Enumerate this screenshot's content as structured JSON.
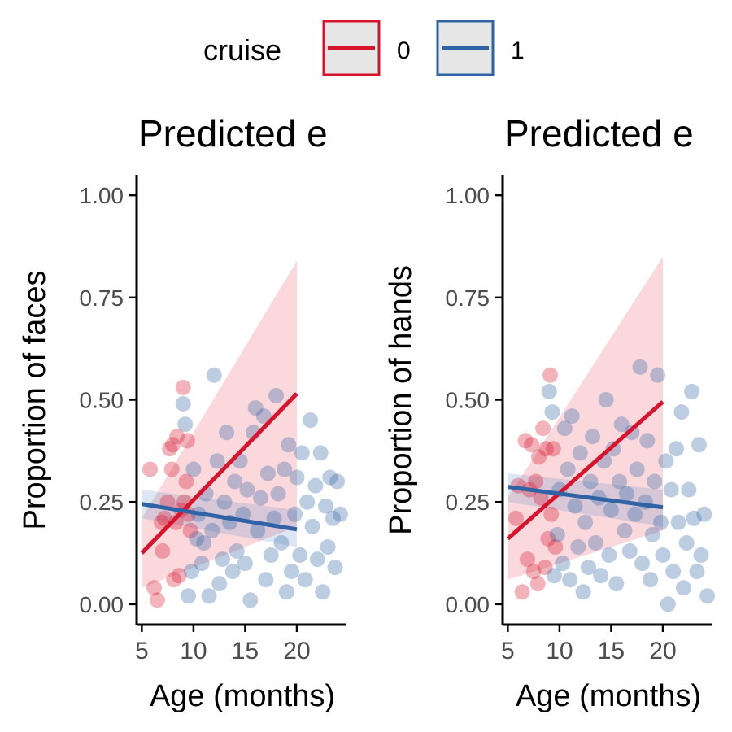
{
  "legend": {
    "title": "cruise",
    "items": [
      {
        "label": "0",
        "color": "#d7142b"
      },
      {
        "label": "1",
        "color": "#2f63a6"
      }
    ]
  },
  "chart_data": [
    {
      "type": "scatter",
      "title": "Predicted e",
      "xlabel": "Age (months)",
      "ylabel": "Proportion of faces",
      "xlim": [
        4.5,
        24.8
      ],
      "ylim": [
        -0.05,
        1.05
      ],
      "xticks": [
        5,
        10,
        15,
        20
      ],
      "yticks": [
        0.0,
        0.25,
        0.5,
        0.75,
        1.0
      ],
      "ytick_labels": [
        "0.00",
        "0.25",
        "0.50",
        "0.75",
        "1.00"
      ],
      "series": [
        {
          "name": "0",
          "color": "#d7142b",
          "points": [
            [
              5.8,
              0.33
            ],
            [
              6.2,
              0.04
            ],
            [
              6.5,
              0.01
            ],
            [
              6.9,
              0.2
            ],
            [
              7.0,
              0.13
            ],
            [
              7.2,
              0.21
            ],
            [
              7.5,
              0.25
            ],
            [
              7.7,
              0.38
            ],
            [
              7.9,
              0.33
            ],
            [
              8.0,
              0.39
            ],
            [
              8.1,
              0.06
            ],
            [
              8.3,
              0.2
            ],
            [
              8.4,
              0.41
            ],
            [
              8.6,
              0.07
            ],
            [
              8.8,
              0.23
            ],
            [
              9.0,
              0.53
            ],
            [
              9.1,
              0.25
            ],
            [
              9.3,
              0.3
            ],
            [
              9.4,
              0.4
            ],
            [
              9.5,
              0.22
            ],
            [
              9.7,
              0.18
            ]
          ],
          "fit": {
            "x": [
              5,
              20
            ],
            "y": [
              0.125,
              0.515
            ]
          },
          "band": {
            "lower": [
              0.04,
              0.19
            ],
            "upper": [
              0.21,
              0.84
            ]
          }
        },
        {
          "name": "1",
          "color": "#2f63a6",
          "points": [
            [
              9.0,
              0.49
            ],
            [
              9.2,
              0.44
            ],
            [
              9.5,
              0.02
            ],
            [
              9.8,
              0.08
            ],
            [
              10.0,
              0.33
            ],
            [
              10.3,
              0.16
            ],
            [
              10.5,
              0.22
            ],
            [
              10.8,
              0.1
            ],
            [
              11.0,
              0.15
            ],
            [
              11.2,
              0.27
            ],
            [
              11.5,
              0.02
            ],
            [
              11.8,
              0.18
            ],
            [
              12.0,
              0.56
            ],
            [
              12.3,
              0.35
            ],
            [
              12.5,
              0.05
            ],
            [
              12.8,
              0.11
            ],
            [
              13.0,
              0.25
            ],
            [
              13.2,
              0.42
            ],
            [
              13.5,
              0.2
            ],
            [
              13.8,
              0.08
            ],
            [
              14.0,
              0.3
            ],
            [
              14.2,
              0.13
            ],
            [
              14.5,
              0.35
            ],
            [
              14.8,
              0.22
            ],
            [
              15.0,
              0.1
            ],
            [
              15.2,
              0.28
            ],
            [
              15.5,
              0.01
            ],
            [
              15.8,
              0.42
            ],
            [
              16.0,
              0.48
            ],
            [
              16.2,
              0.18
            ],
            [
              16.5,
              0.26
            ],
            [
              16.8,
              0.46
            ],
            [
              17.0,
              0.06
            ],
            [
              17.2,
              0.32
            ],
            [
              17.5,
              0.12
            ],
            [
              17.8,
              0.21
            ],
            [
              18.0,
              0.51
            ],
            [
              18.2,
              0.27
            ],
            [
              18.5,
              0.15
            ],
            [
              18.8,
              0.33
            ],
            [
              19.0,
              0.03
            ],
            [
              19.2,
              0.39
            ],
            [
              19.5,
              0.08
            ],
            [
              19.8,
              0.22
            ],
            [
              20.0,
              0.31
            ],
            [
              20.3,
              0.12
            ],
            [
              20.5,
              0.37
            ],
            [
              20.8,
              0.06
            ],
            [
              21.0,
              0.25
            ],
            [
              21.3,
              0.45
            ],
            [
              21.5,
              0.19
            ],
            [
              21.8,
              0.29
            ],
            [
              22.0,
              0.11
            ],
            [
              22.3,
              0.37
            ],
            [
              22.5,
              0.03
            ],
            [
              22.8,
              0.24
            ],
            [
              23.0,
              0.14
            ],
            [
              23.2,
              0.31
            ],
            [
              23.5,
              0.21
            ],
            [
              23.7,
              0.09
            ],
            [
              23.9,
              0.3
            ],
            [
              24.2,
              0.22
            ]
          ],
          "fit": {
            "x": [
              5,
              20
            ],
            "y": [
              0.245,
              0.183
            ]
          },
          "band": {
            "lower": [
              0.21,
              0.14
            ],
            "upper": [
              0.28,
              0.23
            ]
          }
        }
      ]
    },
    {
      "type": "scatter",
      "title": "Predicted e",
      "xlabel": "Age (months)",
      "ylabel": "Proportion of hands",
      "xlim": [
        4.5,
        24.8
      ],
      "ylim": [
        -0.05,
        1.05
      ],
      "xticks": [
        5,
        10,
        15,
        20
      ],
      "yticks": [
        0.0,
        0.25,
        0.5,
        0.75,
        1.0
      ],
      "ytick_labels": [
        "0.00",
        "0.25",
        "0.50",
        "0.75",
        "1.00"
      ],
      "series": [
        {
          "name": "0",
          "color": "#d7142b",
          "points": [
            [
              5.8,
              0.21
            ],
            [
              6.0,
              0.29
            ],
            [
              6.4,
              0.03
            ],
            [
              6.7,
              0.4
            ],
            [
              6.9,
              0.11
            ],
            [
              7.1,
              0.28
            ],
            [
              7.3,
              0.39
            ],
            [
              7.5,
              0.08
            ],
            [
              7.7,
              0.3
            ],
            [
              7.9,
              0.05
            ],
            [
              8.0,
              0.36
            ],
            [
              8.2,
              0.26
            ],
            [
              8.4,
              0.43
            ],
            [
              8.6,
              0.09
            ],
            [
              8.7,
              0.38
            ],
            [
              8.9,
              0.16
            ],
            [
              9.1,
              0.56
            ],
            [
              9.2,
              0.22
            ],
            [
              9.4,
              0.38
            ],
            [
              9.6,
              0.14
            ]
          ],
          "fit": {
            "x": [
              5,
              20
            ],
            "y": [
              0.16,
              0.495
            ]
          },
          "band": {
            "lower": [
              0.06,
              0.18
            ],
            "upper": [
              0.26,
              0.85
            ]
          }
        },
        {
          "name": "1",
          "color": "#2f63a6",
          "points": [
            [
              9.0,
              0.52
            ],
            [
              9.3,
              0.47
            ],
            [
              9.5,
              0.07
            ],
            [
              9.8,
              0.17
            ],
            [
              10.0,
              0.28
            ],
            [
              10.3,
              0.1
            ],
            [
              10.5,
              0.43
            ],
            [
              10.8,
              0.33
            ],
            [
              11.0,
              0.06
            ],
            [
              11.2,
              0.46
            ],
            [
              11.5,
              0.24
            ],
            [
              11.8,
              0.14
            ],
            [
              12.0,
              0.37
            ],
            [
              12.3,
              0.03
            ],
            [
              12.5,
              0.2
            ],
            [
              12.8,
              0.09
            ],
            [
              13.0,
              0.3
            ],
            [
              13.2,
              0.41
            ],
            [
              13.5,
              0.15
            ],
            [
              13.8,
              0.26
            ],
            [
              14.0,
              0.07
            ],
            [
              14.3,
              0.35
            ],
            [
              14.5,
              0.5
            ],
            [
              14.8,
              0.12
            ],
            [
              15.0,
              0.23
            ],
            [
              15.2,
              0.38
            ],
            [
              15.5,
              0.05
            ],
            [
              15.8,
              0.3
            ],
            [
              16.0,
              0.44
            ],
            [
              16.3,
              0.18
            ],
            [
              16.5,
              0.27
            ],
            [
              16.8,
              0.13
            ],
            [
              17.0,
              0.42
            ],
            [
              17.3,
              0.22
            ],
            [
              17.5,
              0.33
            ],
            [
              17.8,
              0.58
            ],
            [
              18.0,
              0.1
            ],
            [
              18.3,
              0.25
            ],
            [
              18.5,
              0.4
            ],
            [
              18.8,
              0.06
            ],
            [
              19.0,
              0.17
            ],
            [
              19.2,
              0.3
            ],
            [
              19.5,
              0.56
            ],
            [
              19.8,
              0.2
            ],
            [
              20.0,
              0.12
            ],
            [
              20.3,
              0.35
            ],
            [
              20.5,
              0.0
            ],
            [
              20.8,
              0.28
            ],
            [
              21.0,
              0.08
            ],
            [
              21.3,
              0.38
            ],
            [
              21.5,
              0.2
            ],
            [
              21.8,
              0.47
            ],
            [
              22.0,
              0.04
            ],
            [
              22.3,
              0.15
            ],
            [
              22.5,
              0.28
            ],
            [
              22.8,
              0.52
            ],
            [
              23.0,
              0.21
            ],
            [
              23.3,
              0.08
            ],
            [
              23.5,
              0.39
            ],
            [
              23.7,
              0.12
            ],
            [
              24.0,
              0.22
            ],
            [
              24.3,
              0.02
            ]
          ],
          "fit": {
            "x": [
              5,
              20
            ],
            "y": [
              0.287,
              0.237
            ]
          },
          "band": {
            "lower": [
              0.25,
              0.19
            ],
            "upper": [
              0.32,
              0.28
            ]
          }
        }
      ]
    }
  ]
}
